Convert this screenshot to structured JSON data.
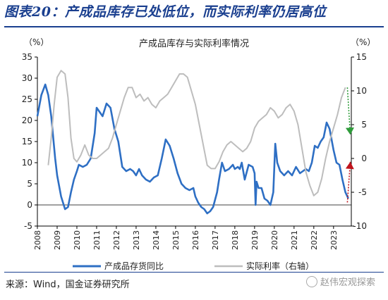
{
  "figure_title": "图表20：产成品库存已处低位，而实际利率仍居高位",
  "source_note": "来源：Wind，国金证券研究所",
  "watermark": "赵伟宏观探索",
  "chart_data": {
    "type": "line",
    "title": "产成品库存与实际利率情况",
    "left_axis": {
      "unit": "（%）",
      "ylim": [
        -5,
        35
      ],
      "ticks": [
        -5,
        0,
        5,
        10,
        15,
        20,
        25,
        30,
        35
      ]
    },
    "right_axis": {
      "unit": "（%）",
      "ylim": [
        -10,
        15
      ],
      "ticks": [
        -10,
        -5,
        0,
        5,
        10,
        15
      ]
    },
    "x_axis": {
      "xlim": [
        2008.0,
        2023.9
      ],
      "tick_labels": [
        "2008",
        "2009",
        "2010",
        "2011",
        "2012",
        "2013",
        "2014",
        "2015",
        "2016",
        "2017",
        "2018",
        "2019",
        "2020",
        "2021",
        "2022",
        "2023"
      ]
    },
    "grid": false,
    "legend_position": "bottom",
    "series": [
      {
        "name": "产成品存货同比",
        "axis": "left",
        "color": "#2e6fc4",
        "x": [
          2008.0,
          2008.2,
          2008.4,
          2008.55,
          2008.7,
          2008.9,
          2009.0,
          2009.2,
          2009.4,
          2009.55,
          2009.7,
          2009.85,
          2010.0,
          2010.1,
          2010.3,
          2010.5,
          2010.7,
          2010.9,
          2011.0,
          2011.15,
          2011.3,
          2011.5,
          2011.7,
          2011.9,
          2012.1,
          2012.3,
          2012.5,
          2012.7,
          2012.85,
          2013.0,
          2013.15,
          2013.3,
          2013.5,
          2013.7,
          2013.9,
          2014.1,
          2014.3,
          2014.5,
          2014.7,
          2014.9,
          2015.1,
          2015.3,
          2015.5,
          2015.7,
          2015.9,
          2016.0,
          2016.15,
          2016.3,
          2016.45,
          2016.6,
          2016.75,
          2016.9,
          2017.1,
          2017.2,
          2017.35,
          2017.5,
          2017.7,
          2017.9,
          2018.0,
          2018.15,
          2018.25,
          2018.35,
          2018.5,
          2018.7,
          2018.9,
          2019.0,
          2019.05,
          2019.1,
          2019.2,
          2019.35,
          2019.5,
          2019.65,
          2019.8,
          2019.95,
          2020.05,
          2020.15,
          2020.3,
          2020.5,
          2020.7,
          2020.9,
          2021.1,
          2021.3,
          2021.45,
          2021.6,
          2021.75,
          2021.9,
          2022.05,
          2022.2,
          2022.35,
          2022.5,
          2022.65,
          2022.8,
          2023.0,
          2023.15,
          2023.3,
          2023.45,
          2023.6,
          2023.75
        ],
        "values": [
          21,
          26,
          28.5,
          26,
          21,
          11,
          7,
          2,
          -1,
          -0.5,
          3,
          6,
          8,
          9.5,
          9,
          9.5,
          11,
          17,
          23,
          22,
          21,
          24,
          23,
          18,
          15,
          9,
          8,
          8.5,
          8,
          7,
          8.5,
          7,
          6,
          5.5,
          6.5,
          7,
          11,
          15.5,
          14,
          11,
          7.5,
          5,
          4,
          3.5,
          4,
          2,
          0.5,
          -0.5,
          -1,
          -2,
          -1.5,
          -0.5,
          3,
          6,
          10,
          8,
          8.5,
          9.5,
          8.5,
          9,
          8.5,
          10,
          6,
          9.5,
          9,
          7.5,
          0,
          5.5,
          4,
          4,
          1.5,
          1,
          0,
          3,
          14.5,
          10,
          8,
          7,
          8,
          7,
          9,
          7.5,
          8,
          8.5,
          8,
          10,
          14,
          13.5,
          15,
          16,
          19.5,
          18,
          13,
          10,
          9.5,
          6,
          3,
          1.5
        ]
      },
      {
        "name": "实际利率（右轴）",
        "axis": "right",
        "color": "#bdbdbd",
        "x": [
          2008.55,
          2008.7,
          2008.85,
          2009.0,
          2009.2,
          2009.4,
          2009.55,
          2009.7,
          2009.85,
          2010.0,
          2010.2,
          2010.4,
          2010.6,
          2010.8,
          2011.0,
          2011.2,
          2011.4,
          2011.6,
          2011.8,
          2012.0,
          2012.2,
          2012.4,
          2012.6,
          2012.8,
          2013.0,
          2013.2,
          2013.4,
          2013.6,
          2013.8,
          2014.0,
          2014.2,
          2014.4,
          2014.6,
          2014.8,
          2015.0,
          2015.2,
          2015.4,
          2015.6,
          2015.8,
          2016.0,
          2016.2,
          2016.4,
          2016.6,
          2016.8,
          2017.0,
          2017.2,
          2017.4,
          2017.6,
          2017.8,
          2018.0,
          2018.2,
          2018.4,
          2018.6,
          2018.8,
          2019.0,
          2019.2,
          2019.4,
          2019.6,
          2019.8,
          2020.0,
          2020.2,
          2020.4,
          2020.6,
          2020.8,
          2021.0,
          2021.2,
          2021.4,
          2021.6,
          2021.8,
          2022.0,
          2022.2,
          2022.4,
          2022.6,
          2022.8,
          2023.0,
          2023.2,
          2023.4,
          2023.6
        ],
        "values": [
          -1,
          3,
          8,
          12,
          13,
          12.5,
          9,
          3,
          0,
          -0.5,
          0.5,
          2,
          0.5,
          0,
          0,
          0.5,
          1,
          1.5,
          3,
          5,
          7,
          9,
          10.5,
          10.5,
          9,
          9.5,
          8.5,
          9,
          8,
          7.5,
          8.5,
          9,
          9.5,
          10.5,
          11.5,
          12.5,
          12.5,
          12,
          10,
          8,
          5,
          2,
          -1,
          -1.5,
          -1.5,
          -0.5,
          1,
          2,
          2.5,
          2,
          1.5,
          1,
          1.5,
          2.5,
          4.5,
          5.5,
          6,
          6.5,
          7.5,
          7,
          6,
          6.5,
          7.5,
          8,
          7,
          5,
          1.5,
          -2,
          -4,
          -5.5,
          -5,
          -3,
          0,
          2.5,
          4.5,
          6.5,
          9,
          10.5
        ]
      }
    ],
    "annotations": [
      {
        "type": "arrow",
        "color": "#2e9b3a",
        "style": "dotted",
        "from": {
          "x": 2023.7,
          "y": 10.5,
          "axis": "right"
        },
        "to": {
          "x": 2023.85,
          "y": 3.5,
          "axis": "right"
        }
      },
      {
        "type": "arrow",
        "color": "#c0141c",
        "style": "dotted",
        "from": {
          "x": 2023.7,
          "y": -6.5,
          "axis": "right"
        },
        "to": {
          "x": 2023.85,
          "y": -0.5,
          "axis": "right"
        }
      }
    ]
  }
}
